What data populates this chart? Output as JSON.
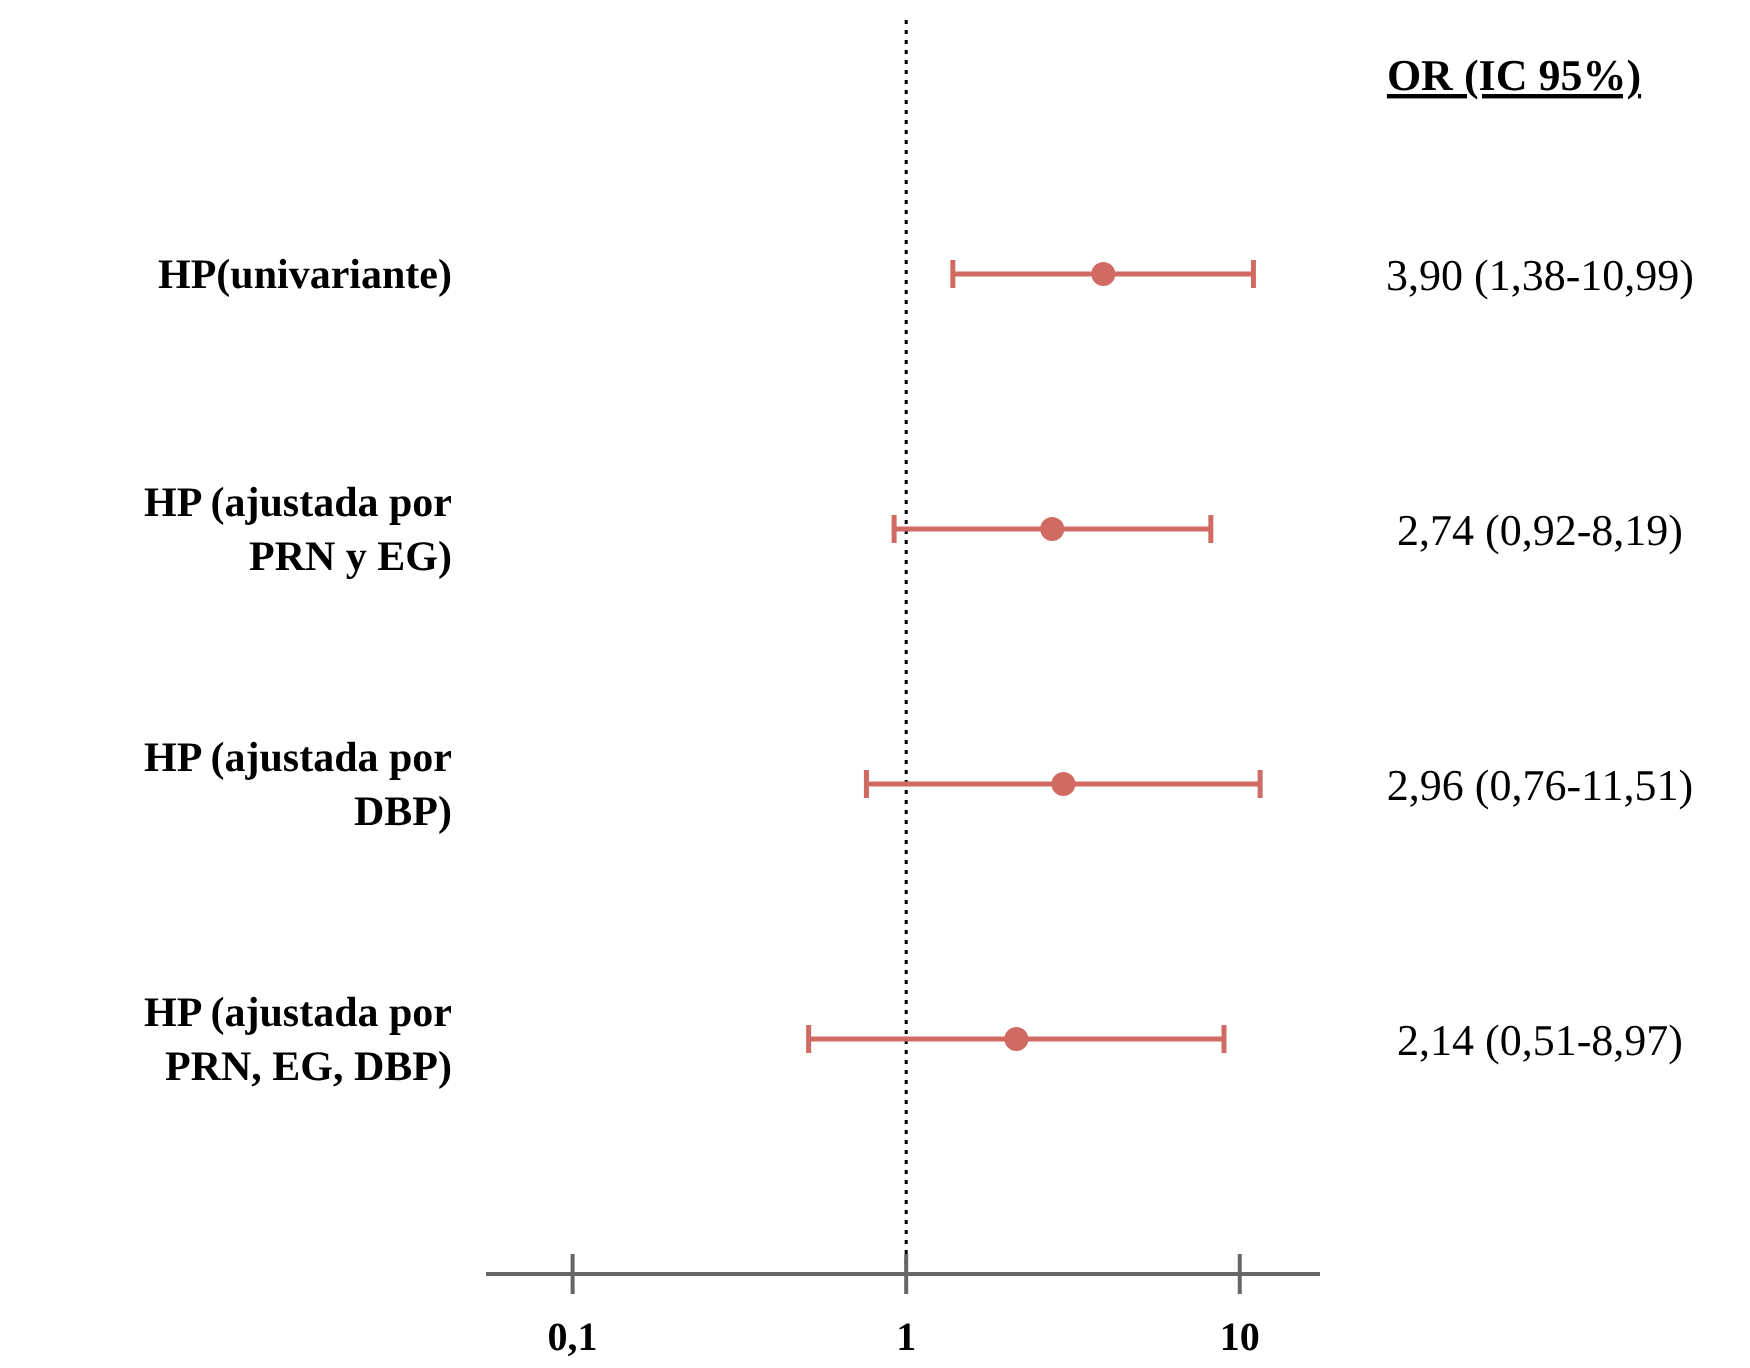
{
  "chart_data": {
    "type": "scatter",
    "orientation": "horizontal",
    "categories": [
      "HP(univariante)",
      "HP (ajustada por PRN y EG)",
      "HP (ajustada por DBP)",
      "HP (ajustada por PRN, EG, DBP)"
    ],
    "values": [
      3.9,
      2.74,
      2.96,
      2.14
    ],
    "errors": [
      [
        1.38,
        10.99
      ],
      [
        0.92,
        8.19
      ],
      [
        0.76,
        11.51
      ],
      [
        0.51,
        8.97
      ]
    ],
    "value_labels": [
      "3,90 (1,38-10,99)",
      "2,74 (0,92-8,19)",
      "2,96 (0,76-11,51)",
      "2,14 (0,51-8,97)"
    ],
    "color": "#d06a62",
    "marker": "circle",
    "log": "x",
    "xlim": [
      0.055,
      17.4
    ],
    "xticks": [
      {
        "value": 0.1,
        "label": "0,1"
      },
      1,
      10
    ],
    "ref_lines": [
      {
        "axis": "x",
        "value": 1,
        "color": "#000000",
        "line_style": "dotted"
      }
    ],
    "annotations": [
      "OR (IC 95%)"
    ],
    "grid": false
  }
}
